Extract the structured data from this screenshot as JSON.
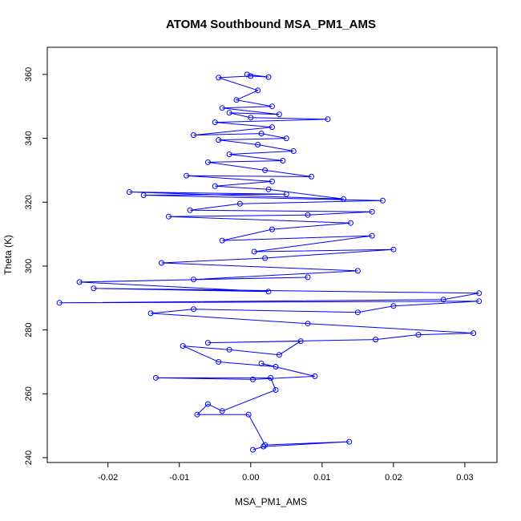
{
  "chart_data": {
    "type": "scatter",
    "title": "ATOM4 Southbound MSA_PM1_AMS",
    "xlabel": "MSA_PM1_AMS",
    "ylabel": "Theta (K)",
    "xlim": [
      -0.0285,
      0.0345
    ],
    "ylim": [
      238.5,
      368.5
    ],
    "xticks": [
      -0.02,
      -0.01,
      0.0,
      0.01,
      0.02,
      0.03
    ],
    "xtick_labels": [
      "-0.02",
      "-0.01",
      "0.00",
      "0.01",
      "0.02",
      "0.03"
    ],
    "yticks": [
      240,
      260,
      280,
      300,
      320,
      340,
      360
    ],
    "ytick_labels": [
      "240",
      "260",
      "280",
      "300",
      "320",
      "340",
      "360"
    ],
    "style": "points connected by lines, open circles",
    "color": "#0000ff",
    "grid": false,
    "series": [
      {
        "values": [
          [
            0.0003,
            242.5
          ],
          [
            0.0018,
            243.5
          ],
          [
            0.0138,
            245.0
          ],
          [
            0.002,
            244.0
          ],
          [
            -0.0003,
            253.5
          ],
          [
            -0.0075,
            253.5
          ],
          [
            -0.006,
            256.8
          ],
          [
            -0.004,
            254.6
          ],
          [
            0.0035,
            261.2
          ],
          [
            0.0028,
            265.0
          ],
          [
            -0.0133,
            265.0
          ],
          [
            0.0003,
            264.5
          ],
          [
            0.009,
            265.5
          ],
          [
            0.0015,
            269.5
          ],
          [
            0.0035,
            268.5
          ],
          [
            -0.0045,
            270.0
          ],
          [
            -0.0095,
            275.0
          ],
          [
            -0.003,
            273.8
          ],
          [
            0.004,
            272.2
          ],
          [
            0.007,
            276.5
          ],
          [
            -0.006,
            276.0
          ],
          [
            0.0175,
            277.0
          ],
          [
            0.0235,
            278.5
          ],
          [
            0.0312,
            279.0
          ],
          [
            0.008,
            282.0
          ],
          [
            -0.014,
            285.2
          ],
          [
            -0.008,
            286.5
          ],
          [
            0.015,
            285.5
          ],
          [
            0.02,
            287.5
          ],
          [
            0.032,
            289.0
          ],
          [
            -0.0268,
            288.5
          ],
          [
            0.027,
            289.5
          ],
          [
            0.032,
            291.5
          ],
          [
            -0.022,
            293.0
          ],
          [
            0.0025,
            292.0
          ],
          [
            -0.024,
            295.0
          ],
          [
            0.008,
            296.5
          ],
          [
            -0.008,
            295.8
          ],
          [
            0.015,
            298.5
          ],
          [
            -0.0125,
            301.0
          ],
          [
            0.002,
            302.5
          ],
          [
            0.02,
            305.2
          ],
          [
            0.0005,
            304.5
          ],
          [
            0.017,
            309.5
          ],
          [
            -0.004,
            308.0
          ],
          [
            0.003,
            311.5
          ],
          [
            0.014,
            313.5
          ],
          [
            -0.0115,
            315.5
          ],
          [
            0.008,
            316.0
          ],
          [
            0.017,
            317.0
          ],
          [
            -0.0085,
            317.5
          ],
          [
            -0.0015,
            319.5
          ],
          [
            0.0185,
            320.5
          ],
          [
            -0.015,
            322.2
          ],
          [
            0.005,
            322.5
          ],
          [
            -0.017,
            323.2
          ],
          [
            0.013,
            321.0
          ],
          [
            0.0025,
            324.0
          ],
          [
            -0.005,
            325.0
          ],
          [
            0.003,
            326.5
          ],
          [
            -0.009,
            328.3
          ],
          [
            0.0085,
            328.0
          ],
          [
            0.002,
            330.0
          ],
          [
            -0.006,
            332.5
          ],
          [
            0.0045,
            333.0
          ],
          [
            -0.003,
            335.0
          ],
          [
            0.006,
            336.0
          ],
          [
            0.001,
            338.0
          ],
          [
            -0.0045,
            339.5
          ],
          [
            0.005,
            340.0
          ],
          [
            0.0015,
            341.5
          ],
          [
            -0.008,
            341.0
          ],
          [
            0.003,
            343.5
          ],
          [
            -0.005,
            345.0
          ],
          [
            0.0108,
            346.0
          ],
          [
            0.0,
            346.5
          ],
          [
            -0.003,
            348.0
          ],
          [
            0.004,
            347.5
          ],
          [
            -0.004,
            349.5
          ],
          [
            0.003,
            350.0
          ],
          [
            -0.002,
            352.0
          ],
          [
            0.001,
            355.0
          ],
          [
            -0.0045,
            359.0
          ],
          [
            0.0,
            359.5
          ],
          [
            0.0025,
            359.2
          ],
          [
            -0.0005,
            360.0
          ]
        ]
      }
    ]
  }
}
